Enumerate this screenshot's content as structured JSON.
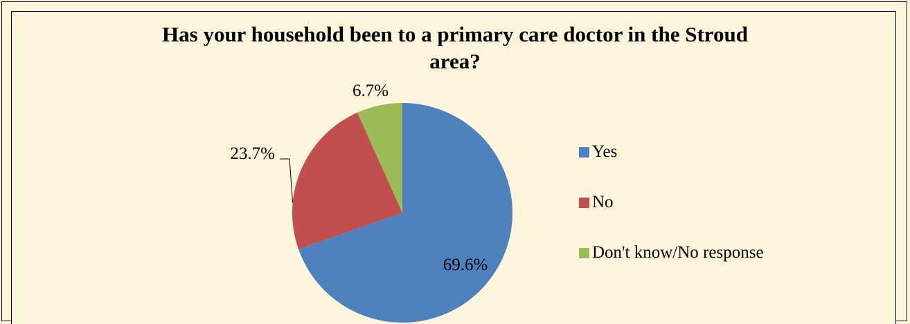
{
  "chart_data": {
    "type": "pie",
    "title_line1": "Has your household been to a primary care doctor in the Stroud",
    "title_line2": "area?",
    "slices": [
      {
        "name": "Yes",
        "value": 69.6,
        "label": "69.6%",
        "color": "#4f81bd"
      },
      {
        "name": "No",
        "value": 23.7,
        "label": "23.7%",
        "color": "#c0504d"
      },
      {
        "name": "Don't know/No response",
        "value": 6.7,
        "label": "6.7%",
        "color": "#9bbb59"
      }
    ],
    "legend_position": "right"
  }
}
